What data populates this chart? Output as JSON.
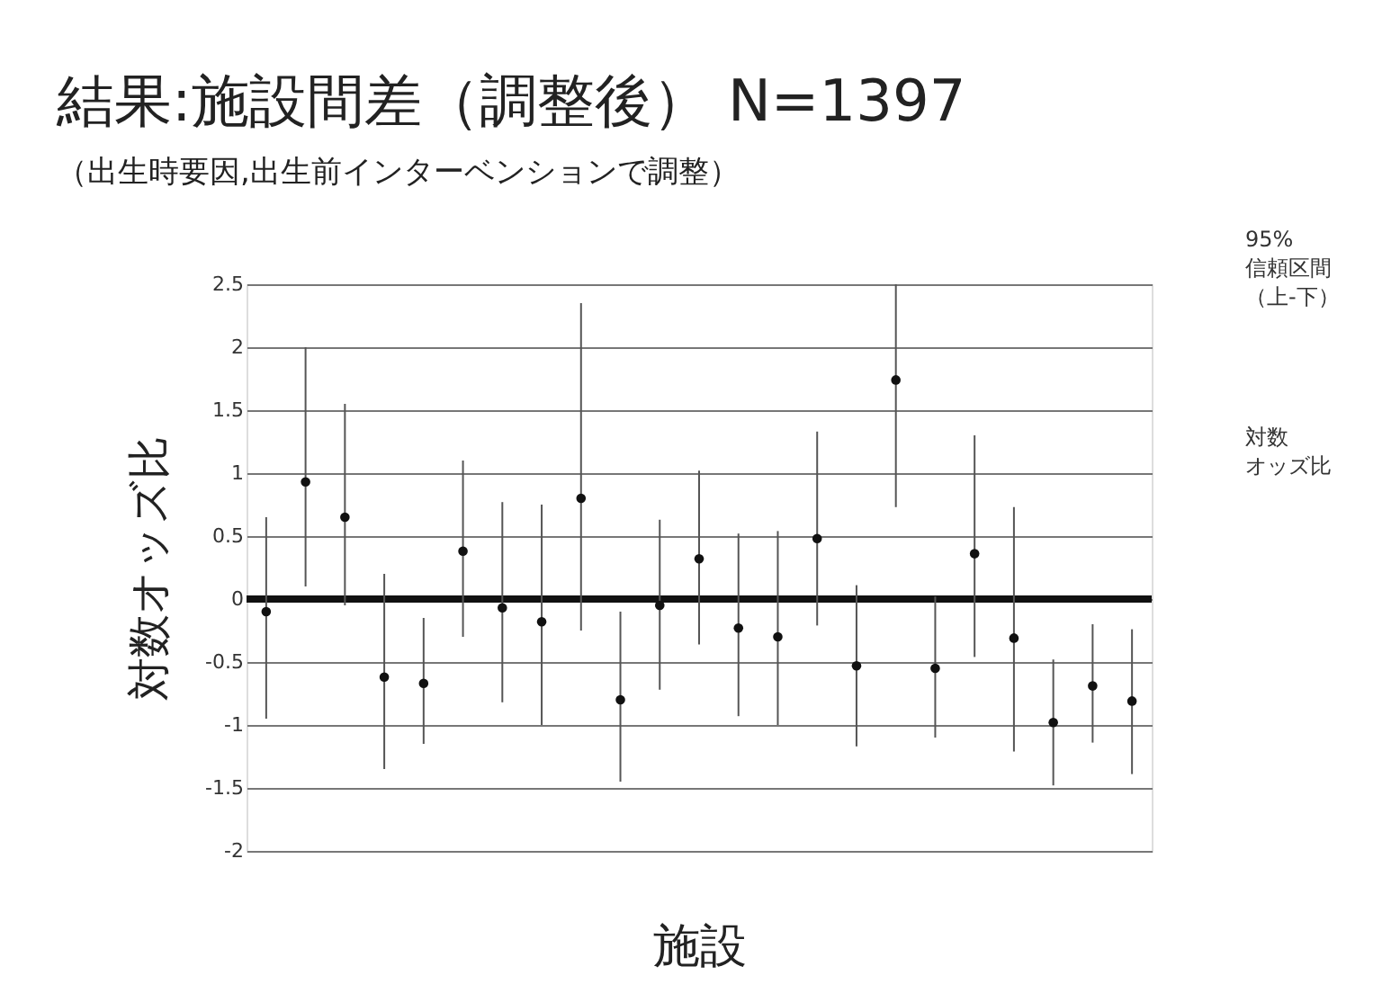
{
  "chart_data": {
    "type": "scatter",
    "title": "結果:施設間差（調整後） N=1397",
    "subtitle": "（出生時要因,出生前インターベンションで調整）",
    "xlabel": "施設",
    "ylabel": "対数オッズ比",
    "categories": [
      null,
      null,
      null,
      null,
      null,
      null,
      null,
      null,
      null,
      null,
      null,
      null,
      null,
      null,
      null,
      null,
      null,
      null,
      null,
      null,
      null,
      null,
      null
    ],
    "series": [
      {
        "color": "#111111",
        "values": [
          -0.1,
          0.93,
          0.65,
          -0.62,
          -0.67,
          0.38,
          -0.07,
          -0.18,
          0.8,
          -0.8,
          -0.05,
          0.32,
          -0.23,
          -0.3,
          0.48,
          -0.53,
          1.74,
          -0.55,
          0.36,
          -0.31,
          -0.98,
          -0.69,
          -0.81
        ],
        "errors": [
          [
            -0.95,
            0.65
          ],
          [
            0.1,
            2.0
          ],
          [
            -0.05,
            1.55
          ],
          [
            -1.35,
            0.2
          ],
          [
            -1.15,
            -0.15
          ],
          [
            -0.3,
            1.1
          ],
          [
            -0.82,
            0.77
          ],
          [
            -1.0,
            0.75
          ],
          [
            -0.25,
            2.35
          ],
          [
            -1.45,
            -0.1
          ],
          [
            -0.72,
            0.63
          ],
          [
            -0.36,
            1.02
          ],
          [
            -0.93,
            0.52
          ],
          [
            -1.0,
            0.54
          ],
          [
            -0.21,
            1.33
          ],
          [
            -1.17,
            0.11
          ],
          [
            0.73,
            2.5
          ],
          [
            -1.1,
            0.02
          ],
          [
            -0.46,
            1.3
          ],
          [
            -1.21,
            0.73
          ],
          [
            -1.48,
            -0.48
          ],
          [
            -1.14,
            -0.2
          ],
          [
            -1.39,
            -0.24
          ]
        ]
      }
    ],
    "ylim": [
      -2,
      2.5
    ],
    "yticks": [
      -2,
      -1.5,
      -1,
      -0.5,
      0,
      0.5,
      1,
      1.5,
      2,
      2.5
    ],
    "ref_lines": [
      {
        "axis": "y",
        "value": 0,
        "color": "#111111"
      }
    ],
    "grid": "y",
    "marker": "circle",
    "annotations": [
      "95%",
      "信頼区間",
      "（上-下）",
      "対数",
      "オッズ比"
    ]
  }
}
